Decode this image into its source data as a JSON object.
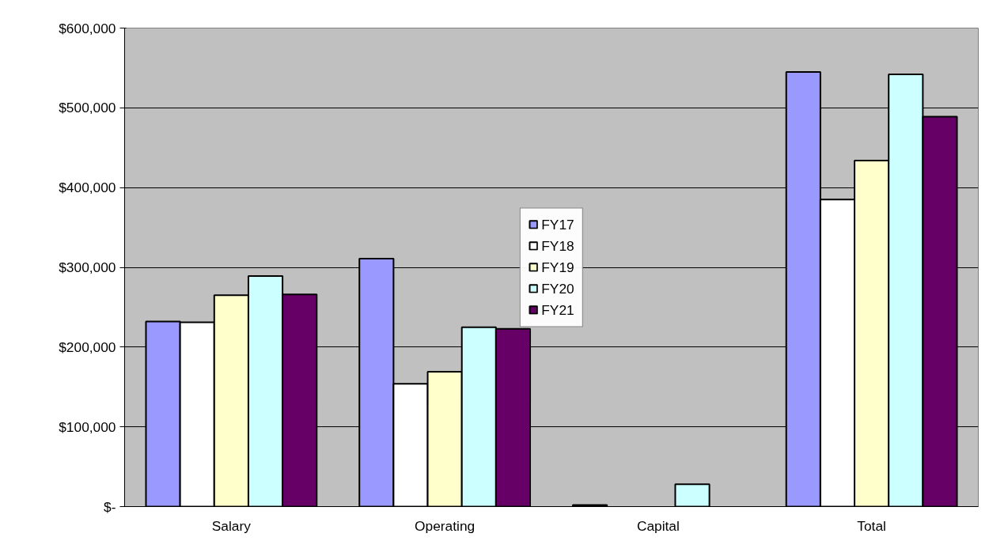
{
  "chart_data": {
    "type": "bar",
    "categories": [
      "Salary",
      "Operating",
      "Capital",
      "Total"
    ],
    "series": [
      {
        "name": "FY17",
        "color": "#9999ff",
        "values": [
          232000,
          311000,
          2000,
          545000
        ]
      },
      {
        "name": "FY18",
        "color": "#ffffff",
        "values": [
          231000,
          154000,
          null,
          385000
        ]
      },
      {
        "name": "FY19",
        "color": "#ffffcc",
        "values": [
          265000,
          169000,
          null,
          434000
        ]
      },
      {
        "name": "FY20",
        "color": "#ccffff",
        "values": [
          289000,
          225000,
          28000,
          542000
        ]
      },
      {
        "name": "FY21",
        "color": "#660066",
        "values": [
          266000,
          223000,
          null,
          489000
        ]
      }
    ],
    "ylim": [
      0,
      600000
    ],
    "yticks": [
      {
        "value": 0,
        "label": "$-"
      },
      {
        "value": 100000,
        "label": "$100,000"
      },
      {
        "value": 200000,
        "label": "$200,000"
      },
      {
        "value": 300000,
        "label": "$300,000"
      },
      {
        "value": 400000,
        "label": "$400,000"
      },
      {
        "value": 500000,
        "label": "$500,000"
      },
      {
        "value": 600000,
        "label": "$600,000"
      }
    ],
    "grid": "y",
    "legend": "center"
  }
}
